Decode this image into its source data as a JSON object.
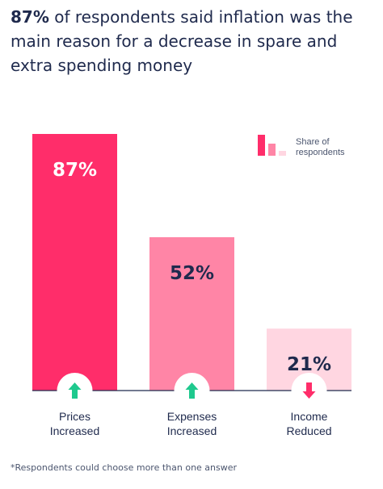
{
  "title": {
    "highlight": "87%",
    "rest": "of respondents said inflation was the main reason for a decrease in spare and extra spending money"
  },
  "legend": {
    "label_line1": "Share of",
    "label_line2": "respondents"
  },
  "chart_data": {
    "type": "bar",
    "categories": [
      [
        "Prices",
        "Increased"
      ],
      [
        "Expenses",
        "Increased"
      ],
      [
        "Income",
        "Reduced"
      ]
    ],
    "values": [
      87,
      52,
      21
    ],
    "value_labels": [
      "87%",
      "52%",
      "21%"
    ],
    "trend_icons": [
      "arrow-up-icon",
      "arrow-up-icon",
      "arrow-down-icon"
    ],
    "ylim": [
      0,
      87
    ],
    "grid": false,
    "legend_position": "top-right",
    "colors": {
      "bars": [
        "#ff2d6a",
        "#ff85a6",
        "#ffd6e1"
      ],
      "label_text": [
        "#ffffff",
        "#1f2a4d",
        "#1f2a4d"
      ],
      "up_arrow": "#1fc98e",
      "down_arrow": "#ff2d6a",
      "axis": "#1f2a4d"
    }
  },
  "footnote": "*Respondents could choose more than one answer"
}
